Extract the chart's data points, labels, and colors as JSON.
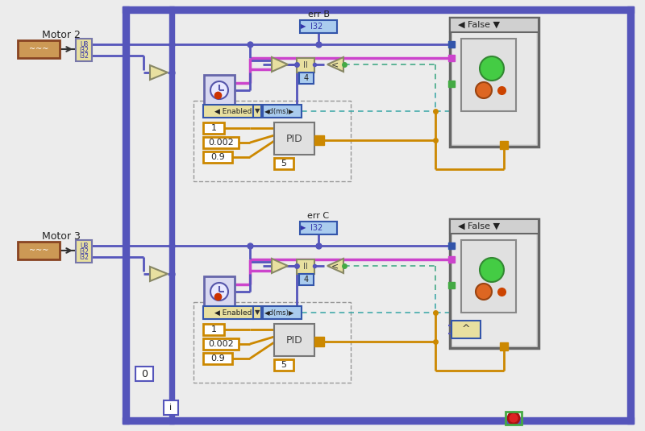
{
  "bg_color": "#e8e8e8",
  "wire_blue": "#5555bb",
  "wire_pink": "#cc44cc",
  "wire_orange": "#cc8800",
  "wire_green_dashed": "#44aa88",
  "wire_teal_dashed": "#44aaaa",
  "motor_fill": "#cc8844",
  "motor_border": "#884400",
  "unbundle_fill": "#e8e0a0",
  "unbundle_border": "#7777aa",
  "node_fill": "#e8e0a0",
  "node_border": "#888866",
  "blue_box_fill": "#aaccff",
  "blue_box_border": "#3344aa",
  "false_box_bg": "#cccccc",
  "false_box_border": "#666666",
  "pid_box_fill": "#e0e0e0",
  "pid_box_border": "#888888",
  "outer_frame_color": "#5555bb",
  "shift_reg_fill": "#d0d0f0",
  "shift_reg_border": "#6666aa",
  "motor2_label": "Motor 2",
  "motor3_label": "Motor 3",
  "err_b_label": "err B",
  "err_c_label": "err C",
  "false_label": "False",
  "enabled_label": "Enabled",
  "pid_label": "PID",
  "val1": "1",
  "val2": "0.002",
  "val3": "0.9",
  "val4": "5",
  "val_4": "4",
  "zero_label": "0",
  "i_label": "i",
  "i32_label": "I32",
  "and_label": "^"
}
